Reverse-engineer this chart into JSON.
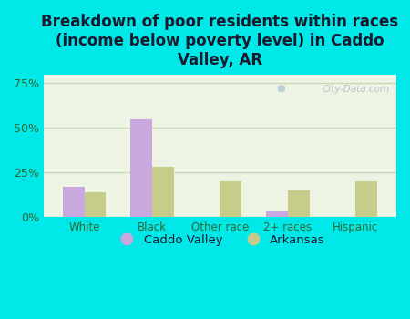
{
  "title": "Breakdown of poor residents within races\n(income below poverty level) in Caddo\nValley, AR",
  "categories": [
    "White",
    "Black",
    "Other race",
    "2+ races",
    "Hispanic"
  ],
  "caddo_valley": [
    17,
    55,
    0,
    3,
    0
  ],
  "arkansas": [
    14,
    28,
    20,
    15,
    20
  ],
  "caddo_color": "#c9a8e0",
  "arkansas_color": "#c8cc8a",
  "background_color": "#00e8e8",
  "plot_bg": "#eef4e4",
  "ylim": [
    0,
    80
  ],
  "yticks": [
    0,
    25,
    50,
    75
  ],
  "ytick_labels": [
    "0%",
    "25%",
    "50%",
    "75%"
  ],
  "bar_width": 0.32,
  "title_fontsize": 12,
  "title_color": "#1a1a2e",
  "legend_labels": [
    "Caddo Valley",
    "Arkansas"
  ],
  "watermark": "City-Data.com",
  "grid_color": "#c8d8b8",
  "tick_label_color": "#336633",
  "axis_label_color": "#336633"
}
